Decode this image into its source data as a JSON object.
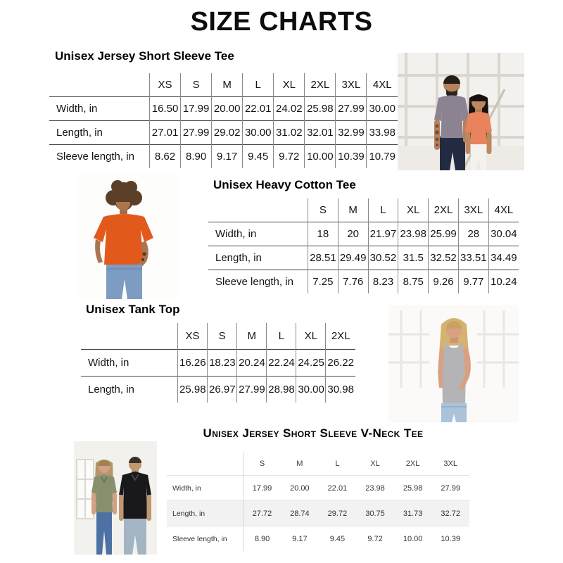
{
  "page": {
    "title": "SIZE CHARTS"
  },
  "tables": [
    {
      "title": "Unisex Jersey Short Sleeve Tee",
      "columns": [
        "XS",
        "S",
        "M",
        "L",
        "XL",
        "2XL",
        "3XL",
        "4XL"
      ],
      "rows": [
        {
          "label": "Width, in",
          "values": [
            "16.50",
            "17.99",
            "20.00",
            "22.01",
            "24.02",
            "25.98",
            "27.99",
            "30.00"
          ]
        },
        {
          "label": "Length, in",
          "values": [
            "27.01",
            "27.99",
            "29.02",
            "30.00",
            "31.02",
            "32.01",
            "32.99",
            "33.98"
          ]
        },
        {
          "label": "Sleeve length, in",
          "values": [
            "8.62",
            "8.90",
            "9.17",
            "9.45",
            "9.72",
            "10.00",
            "10.39",
            "10.79"
          ]
        }
      ]
    },
    {
      "title": "Unisex Heavy Cotton Tee",
      "columns": [
        "S",
        "M",
        "L",
        "XL",
        "2XL",
        "3XL",
        "4XL"
      ],
      "rows": [
        {
          "label": "Width, in",
          "values": [
            "18",
            "20",
            "21.97",
            "23.98",
            "25.99",
            "28",
            "30.04"
          ]
        },
        {
          "label": "Length, in",
          "values": [
            "28.51",
            "29.49",
            "30.52",
            "31.5",
            "32.52",
            "33.51",
            "34.49"
          ]
        },
        {
          "label": "Sleeve length, in",
          "values": [
            "7.25",
            "7.76",
            "8.23",
            "8.75",
            "9.26",
            "9.77",
            "10.24"
          ]
        }
      ]
    },
    {
      "title": "Unisex Tank Top",
      "columns": [
        "XS",
        "S",
        "M",
        "L",
        "XL",
        "2XL"
      ],
      "rows": [
        {
          "label": "Width, in",
          "values": [
            "16.26",
            "18.23",
            "20.24",
            "22.24",
            "24.25",
            "26.22"
          ]
        },
        {
          "label": "Length, in",
          "values": [
            "25.98",
            "26.97",
            "27.99",
            "28.98",
            "30.00",
            "30.98"
          ]
        }
      ]
    },
    {
      "title": "Unisex Jersey Short Sleeve V-Neck Tee",
      "columns": [
        "S",
        "M",
        "L",
        "XL",
        "2XL",
        "3XL"
      ],
      "rows": [
        {
          "label": "Width, in",
          "values": [
            "17.99",
            "20.00",
            "22.01",
            "23.98",
            "25.98",
            "27.99"
          ]
        },
        {
          "label": "Length, in",
          "values": [
            "27.72",
            "28.74",
            "29.72",
            "30.75",
            "31.73",
            "32.72"
          ]
        },
        {
          "label": "Sleeve length, in",
          "values": [
            "8.90",
            "9.17",
            "9.45",
            "9.72",
            "10.00",
            "10.39"
          ]
        }
      ]
    }
  ],
  "photos": [
    {
      "name": "jersey-tee-models",
      "description": "Man in heather grey tee and woman in coral tee in front of loft windows",
      "shirt_colors": [
        "#8c8391",
        "#e8835b"
      ]
    },
    {
      "name": "heavy-cotton-model",
      "description": "Curly-haired model wearing an orange tee with blue jeans",
      "shirt_colors": [
        "#e25a1b"
      ]
    },
    {
      "name": "tank-top-model",
      "description": "Blonde model wearing a heather grey tank top with light jeans",
      "shirt_colors": [
        "#b4b4b7"
      ]
    },
    {
      "name": "v-neck-models",
      "description": "Woman in sage green v-neck tee and man in black v-neck tee",
      "shirt_colors": [
        "#87906d",
        "#19191b"
      ]
    }
  ],
  "style_colors": {
    "heading_text": "#000000",
    "table_rule_dark": "#454545",
    "table_rule_light": "#e3e3e3",
    "vneck_shaded_row": "#f2f2f2"
  }
}
